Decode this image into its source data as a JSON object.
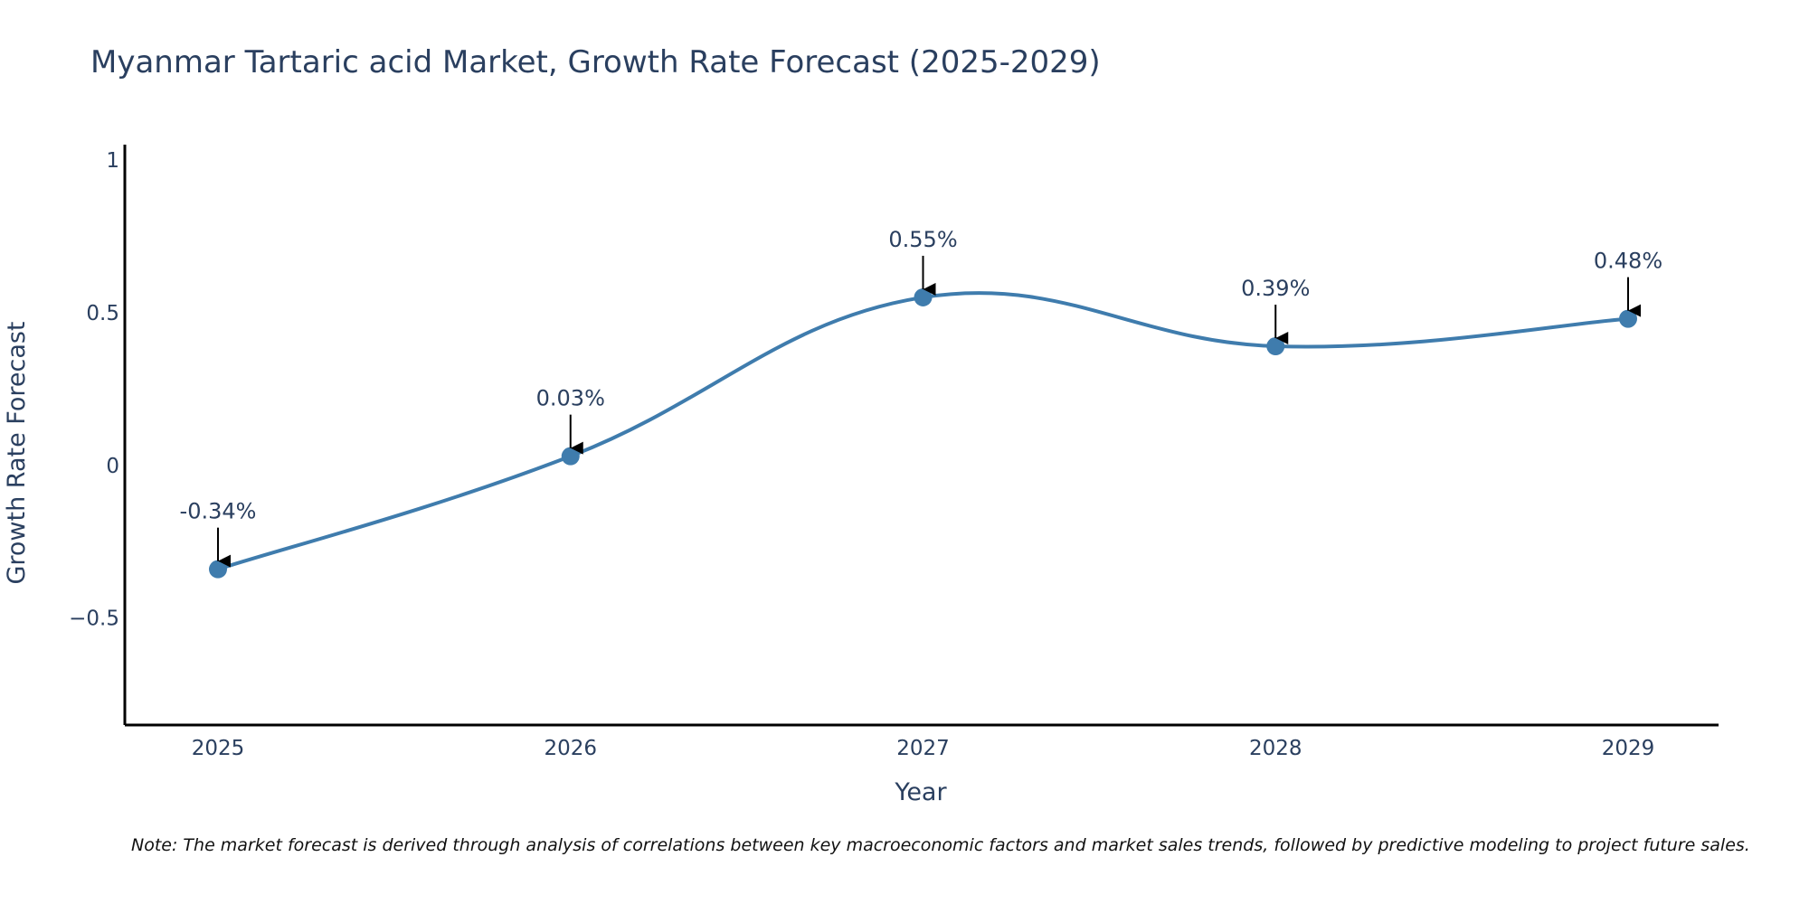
{
  "chart_data": {
    "type": "line",
    "title": "Myanmar Tartaric acid Market, Growth Rate Forecast (2025-2029)",
    "xlabel": "Year",
    "ylabel": "Growth Rate Forecast",
    "categories": [
      "2025",
      "2026",
      "2027",
      "2028",
      "2029"
    ],
    "series": [
      {
        "name": "Growth Rate Forecast",
        "values": [
          -0.34,
          0.03,
          0.55,
          0.39,
          0.48
        ],
        "color": "#3f7cad"
      }
    ],
    "data_labels": [
      "-0.34%",
      "0.03%",
      "0.55%",
      "0.39%",
      "0.48%"
    ],
    "ylim": [
      -0.85,
      1.05
    ],
    "y_ticks": [
      1,
      0.5,
      0,
      -0.5
    ],
    "y_tick_labels": [
      "1",
      "0.5",
      "0",
      "−0.5"
    ],
    "grid": false,
    "note": "Note: The market forecast is derived through analysis of correlations between key macroeconomic factors and market sales trends, followed by predictive modeling to project future sales."
  }
}
